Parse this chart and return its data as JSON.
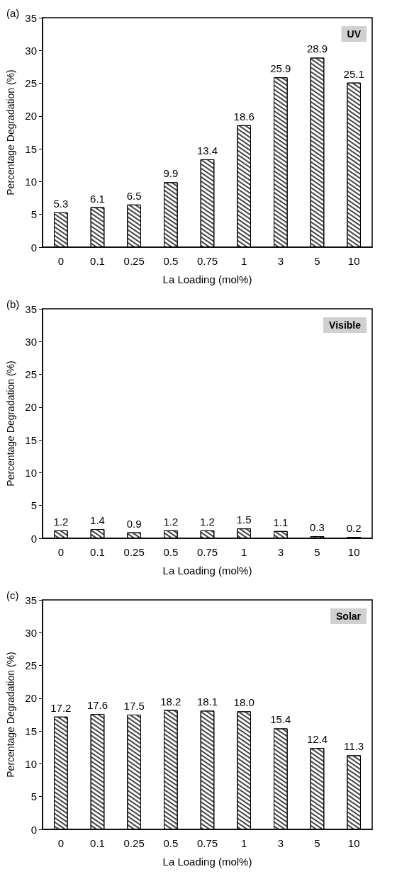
{
  "chart_data": [
    {
      "type": "bar",
      "title": "(a)",
      "xlabel": "La Loading (mol%)",
      "ylabel": "Percentage Degradation (%)",
      "annotations": [
        "UV"
      ],
      "categories": [
        "0",
        "0.1",
        "0.25",
        "0.5",
        "0.75",
        "1",
        "3",
        "5",
        "10"
      ],
      "values": [
        5.3,
        6.1,
        6.5,
        9.9,
        13.4,
        18.6,
        25.9,
        28.9,
        25.1
      ],
      "color": "#ffffff",
      "ylim": [
        0,
        35
      ],
      "yticks": [
        0,
        5,
        10,
        15,
        20,
        25,
        30,
        35
      ],
      "grid": false,
      "data_labels": true
    },
    {
      "type": "bar",
      "title": "(b)",
      "xlabel": "La Loading (mol%)",
      "ylabel": "Percentage Degradation (%)",
      "annotations": [
        "Visible"
      ],
      "categories": [
        "0",
        "0.1",
        "0.25",
        "0.5",
        "0.75",
        "1",
        "3",
        "5",
        "10"
      ],
      "values": [
        1.2,
        1.4,
        0.9,
        1.2,
        1.2,
        1.5,
        1.1,
        0.3,
        0.2
      ],
      "color": "#ffffff",
      "ylim": [
        0,
        35
      ],
      "yticks": [
        0,
        5,
        10,
        15,
        20,
        25,
        30,
        35
      ],
      "grid": false,
      "data_labels": true
    },
    {
      "type": "bar",
      "title": "(c)",
      "xlabel": "La Loading (mol%)",
      "ylabel": "Percentage Degradation (%)",
      "annotations": [
        "Solar"
      ],
      "categories": [
        "0",
        "0.1",
        "0.25",
        "0.5",
        "0.75",
        "1",
        "3",
        "5",
        "10"
      ],
      "values": [
        17.2,
        17.6,
        17.5,
        18.2,
        18.1,
        18.0,
        15.4,
        12.4,
        11.3
      ],
      "value_labels": [
        "17.2",
        "17.6",
        "17.5",
        "18.2",
        "18.1",
        "18.0",
        "15.4",
        "12.4",
        "11.3"
      ],
      "color": "#ffffff",
      "ylim": [
        0,
        35
      ],
      "yticks": [
        0,
        5,
        10,
        15,
        20,
        25,
        30,
        35
      ],
      "grid": false
    }
  ]
}
